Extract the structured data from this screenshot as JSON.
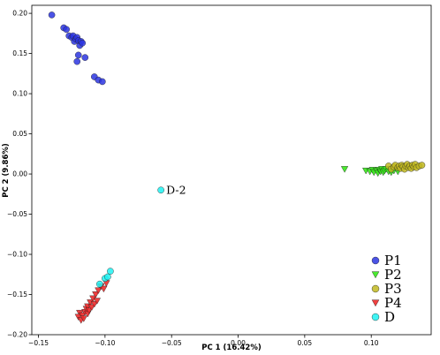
{
  "chart_data": {
    "type": "scatter",
    "xlabel": "PC 1 (16.42%)",
    "ylabel": "PC 2 (9.86%)",
    "xlim": [
      -0.155,
      0.145
    ],
    "ylim": [
      -0.2,
      0.21
    ],
    "xticks": [
      -0.15,
      -0.1,
      -0.05,
      0.0,
      0.05,
      0.1
    ],
    "xtick_labels": [
      "−0.15",
      "−0.10",
      "−0.05",
      "0.00",
      "0.05",
      "0.10"
    ],
    "yticks": [
      0.2,
      0.15,
      0.1,
      0.05,
      0.0,
      -0.05,
      -0.1,
      -0.15,
      -0.2
    ],
    "ytick_labels": [
      "0.20",
      "0.15",
      "0.10",
      "0.05",
      "0.00",
      "−0.05",
      "−0.10",
      "−0.15",
      "−0.20"
    ],
    "grid": false,
    "legend_position": "bottom-right",
    "annotations": [
      {
        "text": "D-2",
        "x": -0.058,
        "y": -0.02
      }
    ],
    "series": [
      {
        "name": "P1",
        "marker": "circle",
        "color": "#2b35e0",
        "points": [
          [
            -0.14,
            0.198
          ],
          [
            -0.131,
            0.182
          ],
          [
            -0.129,
            0.18
          ],
          [
            -0.127,
            0.172
          ],
          [
            -0.125,
            0.17
          ],
          [
            -0.124,
            0.172
          ],
          [
            -0.123,
            0.165
          ],
          [
            -0.122,
            0.168
          ],
          [
            -0.121,
            0.17
          ],
          [
            -0.12,
            0.166
          ],
          [
            -0.119,
            0.16
          ],
          [
            -0.118,
            0.165
          ],
          [
            -0.117,
            0.163
          ],
          [
            -0.12,
            0.148
          ],
          [
            -0.121,
            0.14
          ],
          [
            -0.115,
            0.145
          ],
          [
            -0.108,
            0.121
          ],
          [
            -0.105,
            0.117
          ],
          [
            -0.102,
            0.115
          ]
        ]
      },
      {
        "name": "P2",
        "marker": "triangle-down",
        "color": "#36e81a",
        "points": [
          [
            0.08,
            0.006
          ],
          [
            0.096,
            0.004
          ],
          [
            0.099,
            0.003
          ],
          [
            0.101,
            0.005
          ],
          [
            0.102,
            0.002
          ],
          [
            0.104,
            0.004
          ],
          [
            0.105,
            0.001
          ],
          [
            0.106,
            0.005
          ],
          [
            0.107,
            0.003
          ],
          [
            0.108,
            0.006
          ],
          [
            0.109,
            0.002
          ],
          [
            0.11,
            0.004
          ],
          [
            0.111,
            0.006
          ],
          [
            0.113,
            0.003
          ],
          [
            0.115,
            0.002
          ],
          [
            0.117,
            0.004
          ],
          [
            0.12,
            0.003
          ]
        ]
      },
      {
        "name": "P3",
        "marker": "circle",
        "color": "#c1b921",
        "points": [
          [
            0.113,
            0.01
          ],
          [
            0.115,
            0.006
          ],
          [
            0.117,
            0.009
          ],
          [
            0.118,
            0.011
          ],
          [
            0.12,
            0.008
          ],
          [
            0.121,
            0.01
          ],
          [
            0.122,
            0.007
          ],
          [
            0.123,
            0.011
          ],
          [
            0.124,
            0.009
          ],
          [
            0.125,
            0.006
          ],
          [
            0.126,
            0.01
          ],
          [
            0.127,
            0.012
          ],
          [
            0.128,
            0.008
          ],
          [
            0.129,
            0.01
          ],
          [
            0.13,
            0.007
          ],
          [
            0.131,
            0.011
          ],
          [
            0.132,
            0.009
          ],
          [
            0.133,
            0.012
          ],
          [
            0.134,
            0.008
          ],
          [
            0.136,
            0.01
          ],
          [
            0.138,
            0.011
          ]
        ]
      },
      {
        "name": "P4",
        "marker": "triangle-down",
        "color": "#ee2b2b",
        "points": [
          [
            -0.119,
            -0.173
          ],
          [
            -0.12,
            -0.178
          ],
          [
            -0.118,
            -0.182
          ],
          [
            -0.117,
            -0.176
          ],
          [
            -0.116,
            -0.18
          ],
          [
            -0.115,
            -0.172
          ],
          [
            -0.114,
            -0.168
          ],
          [
            -0.113,
            -0.174
          ],
          [
            -0.113,
            -0.165
          ],
          [
            -0.112,
            -0.17
          ],
          [
            -0.111,
            -0.16
          ],
          [
            -0.11,
            -0.166
          ],
          [
            -0.109,
            -0.155
          ],
          [
            -0.108,
            -0.162
          ],
          [
            -0.107,
            -0.15
          ],
          [
            -0.106,
            -0.158
          ],
          [
            -0.105,
            -0.145
          ],
          [
            -0.103,
            -0.14
          ],
          [
            -0.101,
            -0.143
          ],
          [
            -0.099,
            -0.136
          ]
        ]
      },
      {
        "name": "D",
        "marker": "circle",
        "color": "#1ef2f2",
        "points": [
          [
            -0.058,
            -0.02
          ],
          [
            -0.104,
            -0.137
          ],
          [
            -0.1,
            -0.13
          ],
          [
            -0.098,
            -0.128
          ],
          [
            -0.096,
            -0.121
          ]
        ]
      }
    ]
  }
}
